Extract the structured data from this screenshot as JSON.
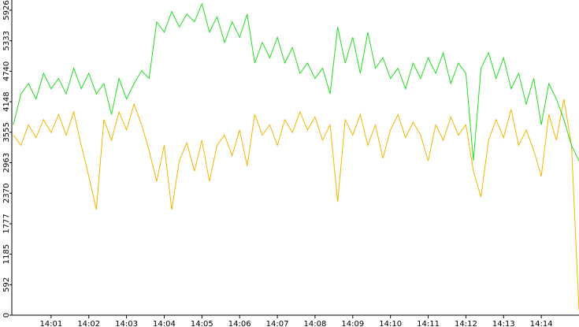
{
  "chart_data": {
    "type": "line",
    "x": [
      0,
      0.2,
      0.4,
      0.6,
      0.8,
      1,
      1.2,
      1.4,
      1.6,
      1.8,
      2,
      2.2,
      2.4,
      2.6,
      2.8,
      3,
      3.2,
      3.4,
      3.6,
      3.8,
      4,
      4.2,
      4.4,
      4.6,
      4.8,
      5,
      5.2,
      5.4,
      5.6,
      5.8,
      6,
      6.2,
      6.4,
      6.6,
      6.8,
      7,
      7.2,
      7.4,
      7.6,
      7.8,
      8,
      8.2,
      8.4,
      8.6,
      8.8,
      9,
      9.2,
      9.4,
      9.6,
      9.8,
      10,
      10.2,
      10.4,
      10.6,
      10.8,
      11,
      11.2,
      11.4,
      11.6,
      11.8,
      12,
      12.2,
      12.4,
      12.6,
      12.8,
      13,
      13.2,
      13.4,
      13.6,
      13.8,
      14,
      14.2,
      14.4,
      14.6,
      14.8,
      15
    ],
    "series": [
      {
        "color": "#f2b600",
        "values": [
          3500,
          3300,
          3700,
          3450,
          3800,
          3550,
          3900,
          3500,
          3950,
          3300,
          2700,
          2050,
          3800,
          3400,
          3950,
          3600,
          4100,
          3700,
          3200,
          2600,
          3300,
          2050,
          3000,
          3350,
          2800,
          3400,
          2600,
          3300,
          3500,
          3100,
          3600,
          2900,
          3900,
          3500,
          3700,
          3300,
          3800,
          3550,
          3950,
          3600,
          3850,
          3400,
          3700,
          2200,
          3800,
          3500,
          3900,
          3300,
          3700,
          3050,
          3600,
          3900,
          3450,
          3750,
          3500,
          3000,
          3700,
          3400,
          3850,
          3500,
          3700,
          2800,
          2300,
          3400,
          3800,
          3450,
          4000,
          3300,
          3600,
          3200,
          2700,
          3900,
          3400,
          4200,
          3300,
          100
        ]
      },
      {
        "color": "#22dd22",
        "values": [
          3700,
          4300,
          4500,
          4200,
          4700,
          4400,
          4600,
          4300,
          4800,
          4400,
          4700,
          4300,
          4500,
          3900,
          4600,
          4200,
          4500,
          4750,
          4600,
          5700,
          5500,
          5900,
          5600,
          5850,
          5700,
          6050,
          5500,
          5800,
          5300,
          5700,
          5400,
          5850,
          4900,
          5300,
          5000,
          5400,
          4900,
          5200,
          4700,
          4900,
          4600,
          4800,
          4300,
          5600,
          4900,
          5400,
          4700,
          5500,
          4800,
          5000,
          4600,
          4800,
          4400,
          4900,
          4600,
          5000,
          4700,
          5100,
          4500,
          4900,
          4700,
          3000,
          4800,
          5100,
          4600,
          5000,
          4400,
          4700,
          4100,
          4600,
          3700,
          4500,
          4200,
          3800,
          3300,
          3000
        ]
      }
    ],
    "xlim": [
      0,
      15
    ],
    "xticks": [
      {
        "value": 1,
        "label": "14:01"
      },
      {
        "value": 2,
        "label": "14:02"
      },
      {
        "value": 3,
        "label": "14:03"
      },
      {
        "value": 4,
        "label": "14:04"
      },
      {
        "value": 5,
        "label": "14:05"
      },
      {
        "value": 6,
        "label": "14:06"
      },
      {
        "value": 7,
        "label": "14:07"
      },
      {
        "value": 8,
        "label": "14:08"
      },
      {
        "value": 9,
        "label": "14:09"
      },
      {
        "value": 10,
        "label": "14:10"
      },
      {
        "value": 11,
        "label": "14:11"
      },
      {
        "value": 12,
        "label": "14:12"
      },
      {
        "value": 13,
        "label": "14:13"
      },
      {
        "value": 14,
        "label": "14:14"
      }
    ],
    "ylim": [
      0,
      6125
    ],
    "yticks": [
      0,
      592,
      1185,
      1777,
      2370,
      2963,
      3555,
      4148,
      4740,
      5333,
      5926
    ]
  }
}
